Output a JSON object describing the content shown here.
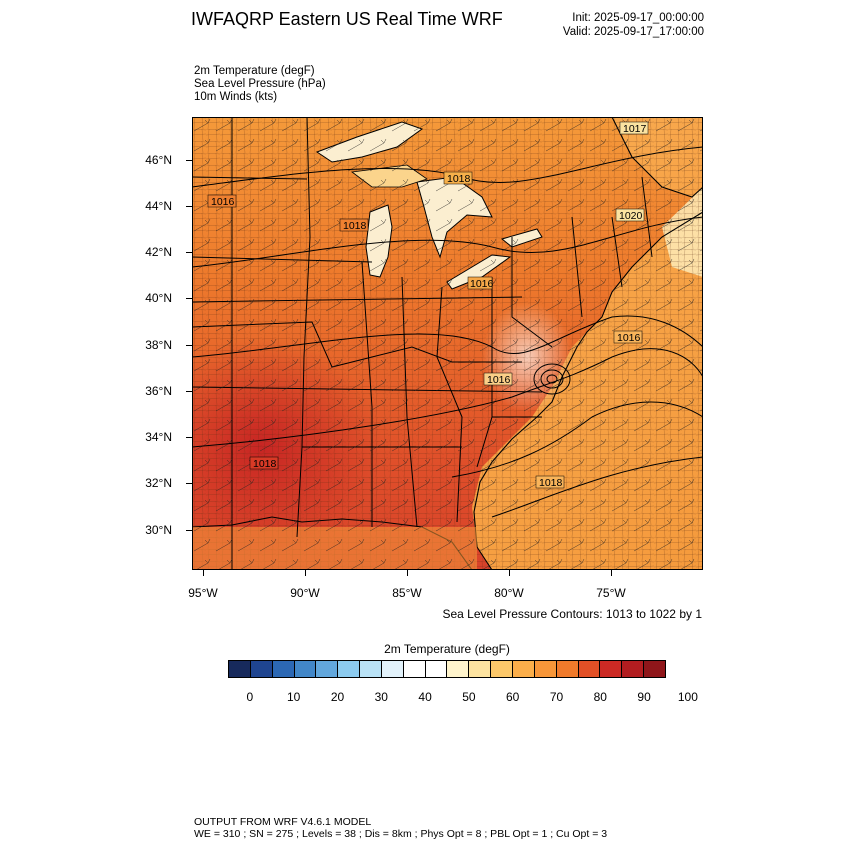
{
  "header": {
    "title": "IWFAQRP Eastern US Real Time WRF",
    "init": "Init: 2025-09-17_00:00:00",
    "valid": "Valid: 2025-09-17_17:00:00"
  },
  "fields": [
    "2m Temperature   (degF)",
    "Sea Level Pressure   (hPa)",
    "10m Winds   (kts)"
  ],
  "map": {
    "lat_labels": [
      "46°N",
      "44°N",
      "42°N",
      "40°N",
      "38°N",
      "36°N",
      "34°N",
      "32°N",
      "30°N"
    ],
    "lon_labels": [
      "95°W",
      "90°W",
      "85°W",
      "80°W",
      "75°W"
    ],
    "isobar_labels": [
      "1017",
      "1018",
      "1016",
      "1018",
      "1020",
      "1016",
      "1016",
      "1016",
      "1018",
      "1018"
    ],
    "lat_range": [
      28.5,
      47.8
    ],
    "lon_range": [
      -95.5,
      -70.5
    ]
  },
  "contour_info": "Sea Level Pressure Contours: 1013 to 1022 by 1",
  "colorbar": {
    "title": "2m Temperature  (degF)",
    "labels": [
      "0",
      "10",
      "20",
      "30",
      "40",
      "50",
      "60",
      "70",
      "80",
      "90",
      "100"
    ],
    "colors": [
      "#172a5c",
      "#1f4590",
      "#2c68b4",
      "#4287c8",
      "#62a7dc",
      "#8ccbef",
      "#b9e2f6",
      "#e2f2fb",
      "#ffffff",
      "#ffffff",
      "#fff4cc",
      "#fde3a0",
      "#fcc86a",
      "#fbae4a",
      "#f79639",
      "#f07a2b",
      "#e25026",
      "#cc2a24",
      "#b21d20",
      "#8f161a"
    ]
  },
  "footer": {
    "line1": "OUTPUT FROM WRF V4.6.1 MODEL",
    "line2": "WE = 310 ; SN = 275 ; Levels = 38 ; Dis = 8km ; Phys Opt = 8 ; PBL Opt = 1 ; Cu Opt = 3"
  }
}
